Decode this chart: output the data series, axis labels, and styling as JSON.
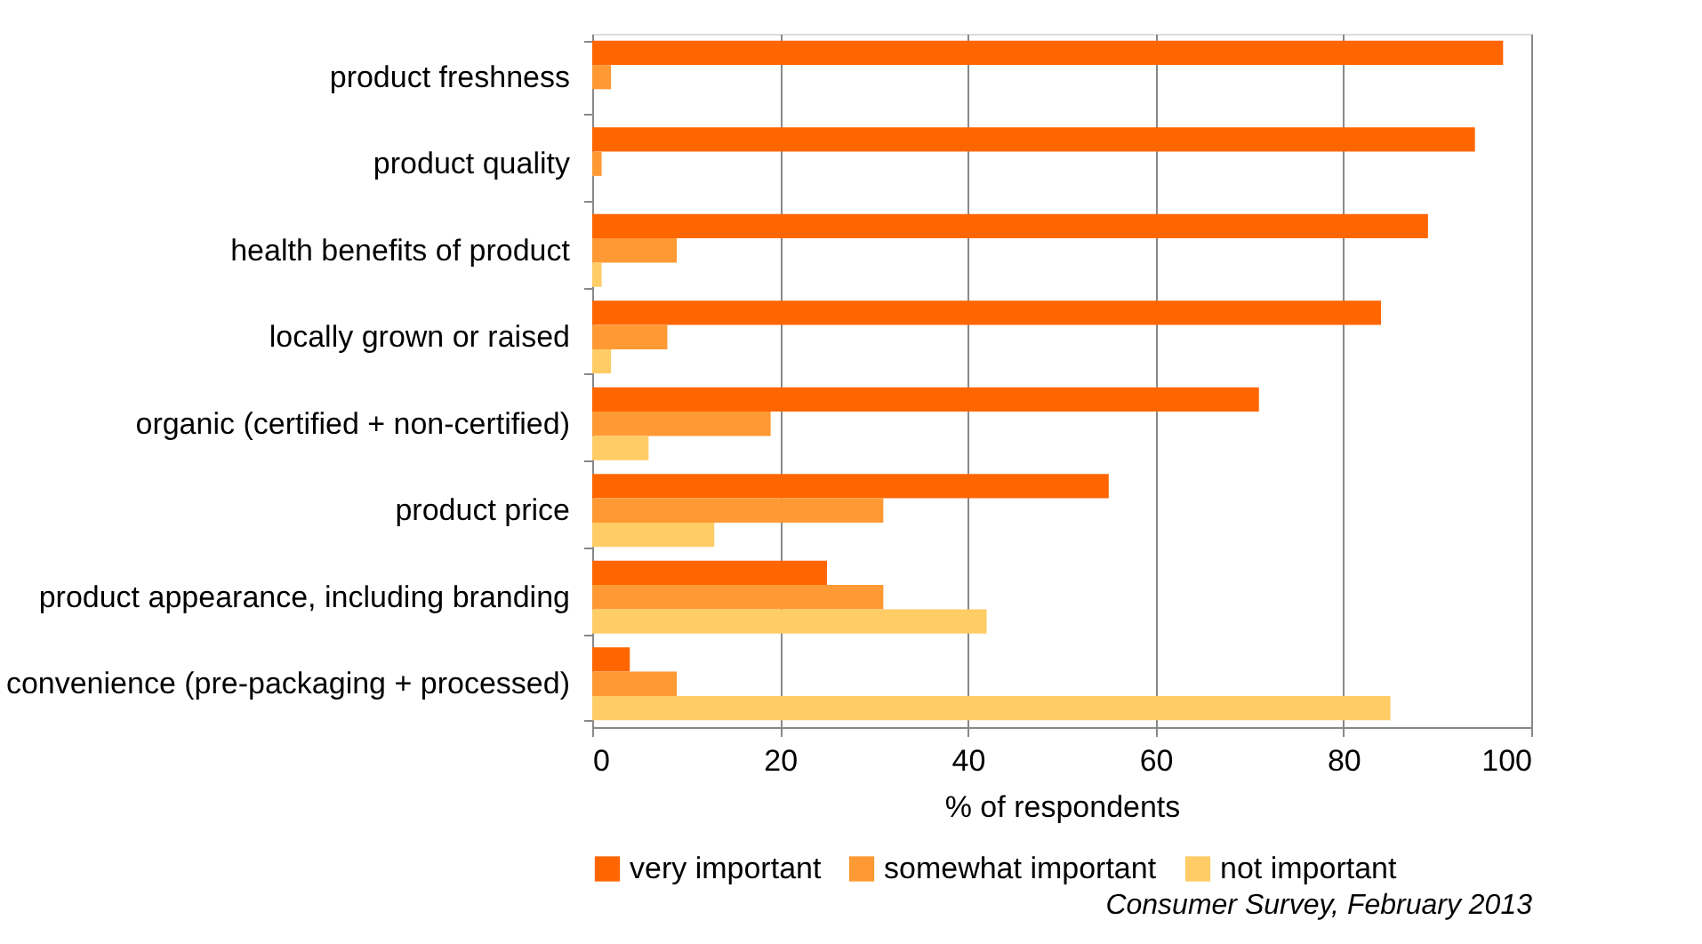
{
  "chart_data": {
    "type": "bar",
    "orientation": "horizontal",
    "categories": [
      "product freshness",
      "product quality",
      "health benefits of product",
      "locally grown or raised",
      "organic (certified + non-certified)",
      "product price",
      "product appearance, including branding",
      "convenience (pre-packaging + processed)"
    ],
    "series": [
      {
        "name": "very important",
        "color": "#ff6600",
        "values": [
          97,
          94,
          89,
          84,
          71,
          55,
          25,
          4
        ]
      },
      {
        "name": "somewhat important",
        "color": "#ff9933",
        "values": [
          2,
          1,
          9,
          8,
          19,
          31,
          31,
          9
        ]
      },
      {
        "name": "not important",
        "color": "#ffcc66",
        "values": [
          0,
          0,
          1,
          2,
          6,
          13,
          42,
          85
        ]
      }
    ],
    "xlabel": "% of respondents",
    "xlim": [
      0,
      100
    ],
    "xticks": [
      0,
      20,
      40,
      60,
      80,
      100
    ],
    "grid": "x",
    "legend": "bottom",
    "annotations": [
      "Consumer Survey, February 2013"
    ]
  }
}
